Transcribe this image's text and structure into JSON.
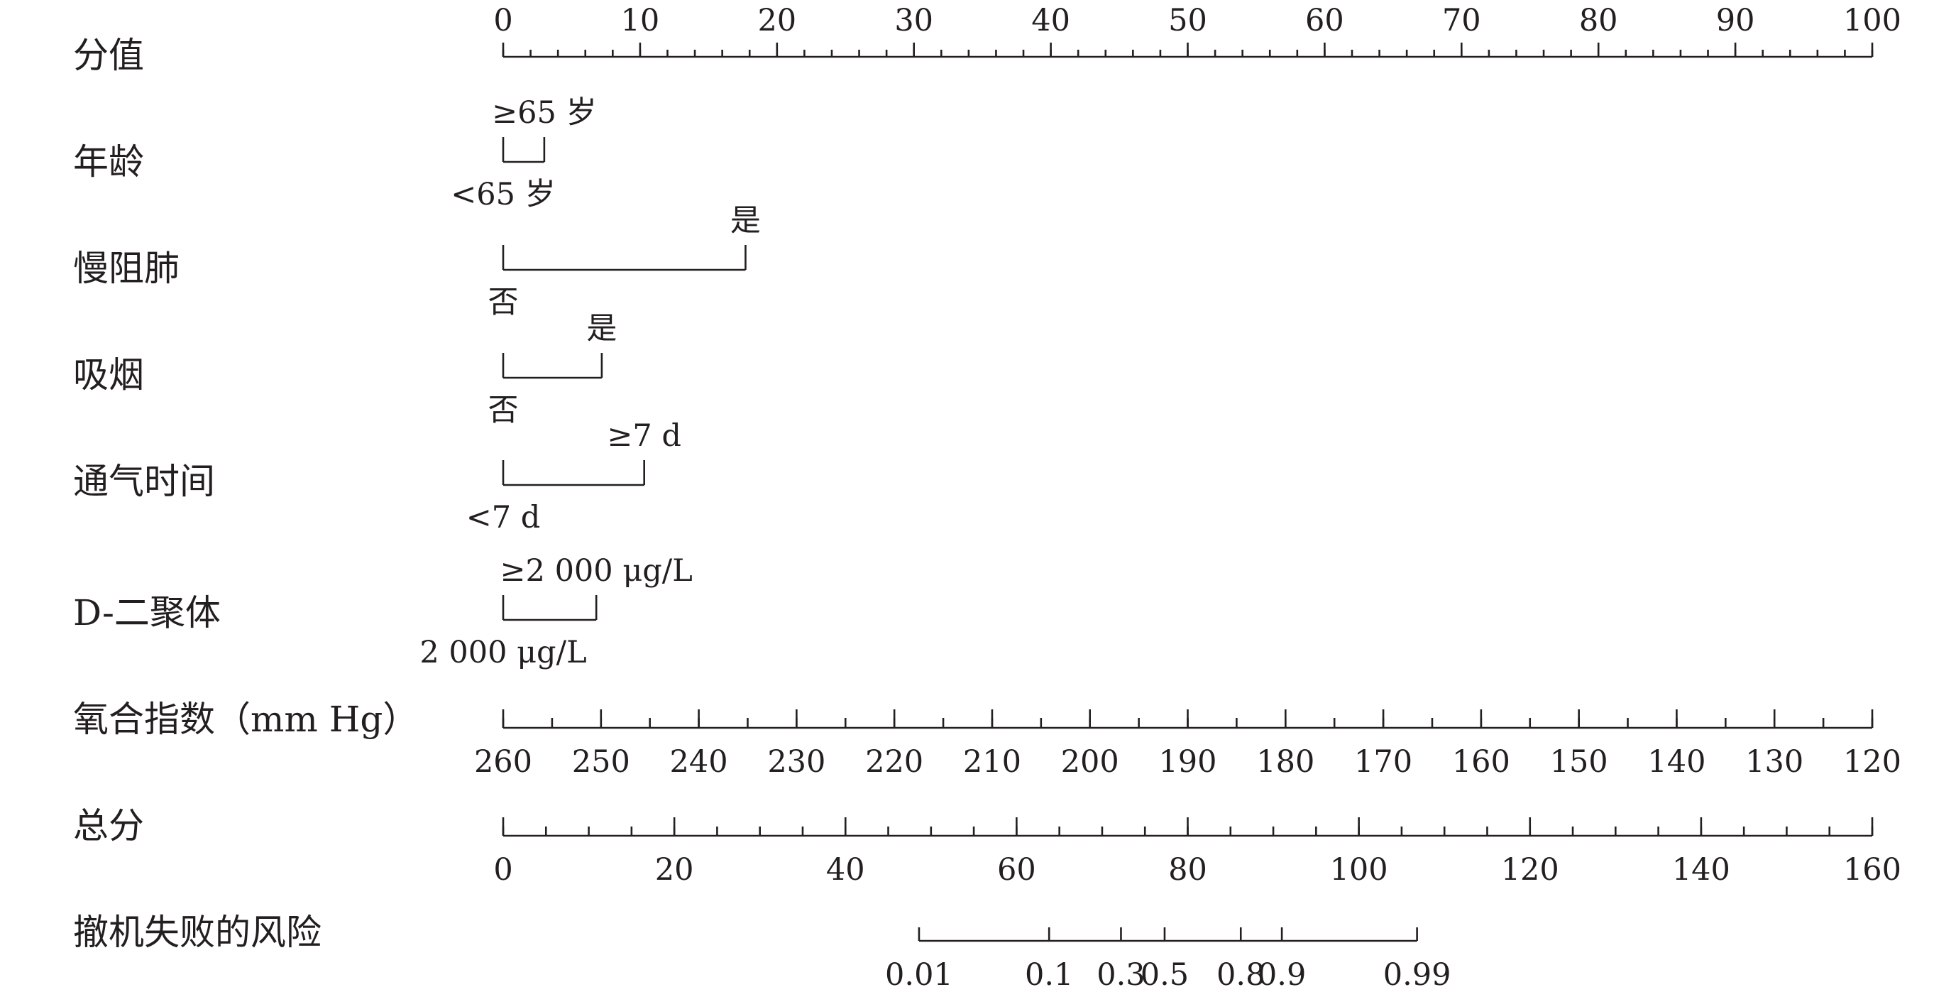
{
  "chart_data": {
    "type": "nomogram",
    "rows": [
      {
        "label": "分值",
        "kind": "points",
        "min": 0,
        "max": 100,
        "ticks": [
          0,
          10,
          20,
          30,
          40,
          50,
          60,
          70,
          80,
          90,
          100
        ],
        "minor_step": 2
      },
      {
        "label": "年龄",
        "kind": "binary",
        "levels": [
          {
            "label": "<65 岁",
            "points": 0
          },
          {
            "label": "≥65 岁",
            "points": 3
          }
        ]
      },
      {
        "label": "慢阻肺",
        "kind": "binary",
        "levels": [
          {
            "label": "否",
            "points": 0
          },
          {
            "label": "是",
            "points": 17.7
          }
        ]
      },
      {
        "label": "吸烟",
        "kind": "binary",
        "levels": [
          {
            "label": "否",
            "points": 0
          },
          {
            "label": "是",
            "points": 7.2
          }
        ]
      },
      {
        "label": "通气时间",
        "kind": "binary",
        "levels": [
          {
            "label": "<7 d",
            "points": 0
          },
          {
            "label": "≥7 d",
            "points": 10.3
          }
        ]
      },
      {
        "label": "D-二聚体",
        "kind": "binary",
        "levels": [
          {
            "label": "2 000 μg/L",
            "points": 0
          },
          {
            "label": "≥2 000 μg/L",
            "points": 6.8
          }
        ]
      },
      {
        "label": "氧合指数（mm Hg）",
        "kind": "continuous",
        "from": 260,
        "to": 120,
        "ticks": [
          260,
          250,
          240,
          230,
          220,
          210,
          200,
          190,
          180,
          170,
          160,
          150,
          140,
          130,
          120
        ],
        "minor_step": 5
      },
      {
        "label": "总分",
        "kind": "total",
        "min": 0,
        "max": 160,
        "ticks": [
          0,
          20,
          40,
          60,
          80,
          100,
          120,
          140,
          160
        ],
        "minor_step": 5
      },
      {
        "label": "撤机失败的风险",
        "kind": "risk",
        "ticks": [
          {
            "label": "0.01",
            "total_points": 48.6
          },
          {
            "label": "0.1",
            "total_points": 63.8
          },
          {
            "label": "0.3",
            "total_points": 72.2
          },
          {
            "label": "0.5",
            "total_points": 77.3
          },
          {
            "label": "0.8",
            "total_points": 86.2
          },
          {
            "label": "0.9",
            "total_points": 91.0
          },
          {
            "label": "0.99",
            "total_points": 106.8
          }
        ]
      }
    ]
  }
}
